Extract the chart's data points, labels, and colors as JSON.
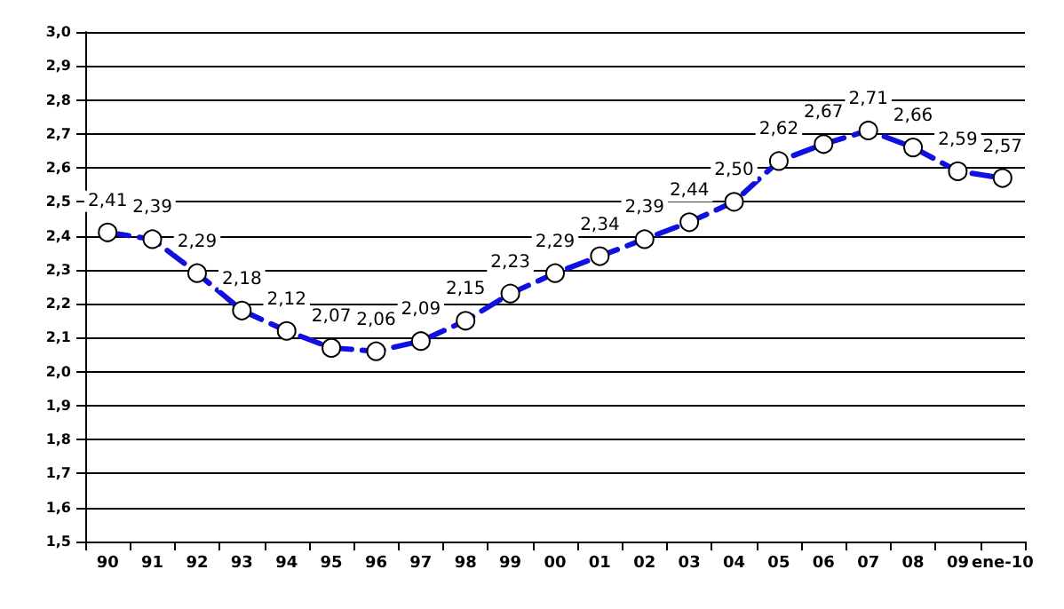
{
  "chart_data": {
    "type": "line",
    "categories": [
      "90",
      "91",
      "92",
      "93",
      "94",
      "95",
      "96",
      "97",
      "98",
      "99",
      "00",
      "01",
      "02",
      "03",
      "04",
      "05",
      "06",
      "07",
      "08",
      "09",
      "ene-10"
    ],
    "series": [
      {
        "color": "#1010e0",
        "values": [
          2.41,
          2.39,
          2.29,
          2.18,
          2.12,
          2.07,
          2.06,
          2.09,
          2.15,
          2.23,
          2.29,
          2.34,
          2.39,
          2.44,
          2.5,
          2.62,
          2.67,
          2.71,
          2.66,
          2.59,
          2.57
        ],
        "value_labels": [
          "2,41",
          "2,39",
          "2,29",
          "2,18",
          "2,12",
          "2,07",
          "2,06",
          "2,09",
          "2,15",
          "2,23",
          "2,29",
          "2,34",
          "2,39",
          "2,44",
          "2,50",
          "2,62",
          "2,67",
          "2,71",
          "2,66",
          "2,59",
          "2,57"
        ]
      }
    ],
    "ylim": [
      1.5,
      3.0
    ],
    "yticks": [
      {
        "value": 1.5,
        "label": "1,5"
      },
      {
        "value": 1.6,
        "label": "1,6"
      },
      {
        "value": 1.7,
        "label": "1,7"
      },
      {
        "value": 1.8,
        "label": "1,8"
      },
      {
        "value": 1.9,
        "label": "1,9"
      },
      {
        "value": 2.0,
        "label": "2,0"
      },
      {
        "value": 2.1,
        "label": "2,1"
      },
      {
        "value": 2.2,
        "label": "2,2"
      },
      {
        "value": 2.3,
        "label": "2,3"
      },
      {
        "value": 2.4,
        "label": "2,4"
      },
      {
        "value": 2.5,
        "label": "2,5"
      },
      {
        "value": 2.6,
        "label": "2,6"
      },
      {
        "value": 2.7,
        "label": "2,7"
      },
      {
        "value": 2.8,
        "label": "2,8"
      },
      {
        "value": 2.9,
        "label": "2,9"
      },
      {
        "value": 3.0,
        "label": "3,0"
      }
    ],
    "grid": "y",
    "marker": "circle",
    "line_style": "dashed"
  }
}
